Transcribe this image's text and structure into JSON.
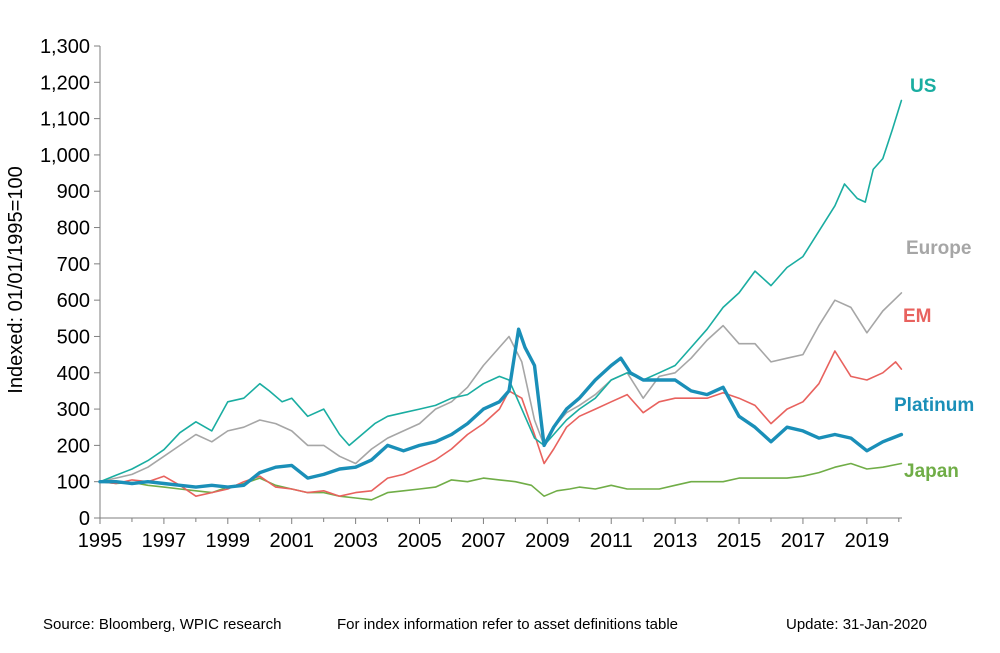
{
  "chart_data": {
    "type": "line",
    "ylabel": "Indexed: 01/01/1995=100",
    "xlabel": "",
    "ylim": [
      0,
      1300
    ],
    "xlim": [
      1995,
      2020.1
    ],
    "y_ticks": [
      0,
      100,
      200,
      300,
      400,
      500,
      600,
      700,
      800,
      900,
      1000,
      1100,
      1200,
      1300
    ],
    "y_tick_labels": [
      "0",
      "100",
      "200",
      "300",
      "400",
      "500",
      "600",
      "700",
      "800",
      "900",
      "1,000",
      "1,100",
      "1,200",
      "1,300"
    ],
    "x_ticks": [
      1995,
      1997,
      1999,
      2001,
      2003,
      2005,
      2007,
      2009,
      2011,
      2013,
      2015,
      2017,
      2019
    ],
    "grid": false,
    "legend": "inline labels at line ends",
    "series": [
      {
        "name": "US",
        "color": "#1aada1",
        "x": [
          1995,
          1995.5,
          1996,
          1996.5,
          1997,
          1997.5,
          1998,
          1998.5,
          1999,
          1999.5,
          2000,
          2000.3,
          2000.7,
          2001,
          2001.5,
          2002,
          2002.5,
          2002.8,
          2003.2,
          2003.6,
          2004,
          2004.5,
          2005,
          2005.5,
          2006,
          2006.5,
          2007,
          2007.5,
          2007.8,
          2008.2,
          2008.6,
          2008.9,
          2009.2,
          2009.6,
          2010,
          2010.5,
          2011,
          2011.5,
          2012,
          2012.5,
          2013,
          2013.5,
          2014,
          2014.5,
          2015,
          2015.5,
          2016,
          2016.5,
          2017,
          2017.5,
          2018,
          2018.3,
          2018.7,
          2018.95,
          2019.2,
          2019.5,
          2019.8,
          2020.08
        ],
        "values": [
          100,
          118,
          135,
          158,
          188,
          235,
          265,
          240,
          320,
          330,
          370,
          350,
          320,
          330,
          280,
          300,
          230,
          200,
          230,
          260,
          280,
          290,
          300,
          310,
          330,
          340,
          370,
          390,
          380,
          300,
          220,
          200,
          230,
          270,
          300,
          330,
          380,
          400,
          380,
          400,
          420,
          470,
          520,
          580,
          620,
          680,
          640,
          690,
          720,
          790,
          860,
          920,
          880,
          870,
          960,
          990,
          1070,
          1150
        ]
      },
      {
        "name": "Europe",
        "color": "#a6a6a6",
        "x": [
          1995,
          1995.5,
          1996,
          1996.5,
          1997,
          1997.5,
          1998,
          1998.5,
          1999,
          1999.5,
          2000,
          2000.5,
          2001,
          2001.5,
          2002,
          2002.5,
          2003,
          2003.5,
          2004,
          2004.5,
          2005,
          2005.5,
          2006,
          2006.5,
          2007,
          2007.5,
          2007.8,
          2008.2,
          2008.6,
          2008.9,
          2009.2,
          2009.6,
          2010,
          2010.5,
          2011,
          2011.5,
          2012,
          2012.5,
          2013,
          2013.5,
          2014,
          2014.5,
          2015,
          2015.5,
          2016,
          2016.5,
          2017,
          2017.5,
          2018,
          2018.5,
          2019,
          2019.5,
          2020.08
        ],
        "values": [
          100,
          110,
          120,
          140,
          170,
          200,
          230,
          210,
          240,
          250,
          270,
          260,
          240,
          200,
          200,
          170,
          150,
          190,
          220,
          240,
          260,
          300,
          320,
          360,
          420,
          470,
          500,
          430,
          270,
          200,
          250,
          290,
          310,
          340,
          380,
          400,
          330,
          390,
          400,
          440,
          490,
          530,
          480,
          480,
          430,
          440,
          450,
          530,
          600,
          580,
          510,
          570,
          620
        ]
      },
      {
        "name": "EM",
        "color": "#e8625e",
        "x": [
          1995,
          1995.5,
          1996,
          1996.5,
          1997,
          1997.5,
          1998,
          1998.5,
          1999,
          1999.5,
          2000,
          2000.5,
          2001,
          2001.5,
          2002,
          2002.5,
          2003,
          2003.5,
          2004,
          2004.5,
          2005,
          2005.5,
          2006,
          2006.5,
          2007,
          2007.5,
          2007.8,
          2008.2,
          2008.6,
          2008.9,
          2009.2,
          2009.6,
          2010,
          2010.5,
          2011,
          2011.5,
          2012,
          2012.5,
          2013,
          2013.5,
          2014,
          2014.5,
          2015,
          2015.5,
          2016,
          2016.5,
          2017,
          2017.5,
          2018,
          2018.5,
          2019,
          2019.5,
          2019.9,
          2020.08
        ],
        "values": [
          100,
          95,
          105,
          100,
          115,
          90,
          60,
          70,
          80,
          100,
          115,
          85,
          80,
          70,
          75,
          60,
          70,
          75,
          110,
          120,
          140,
          160,
          190,
          230,
          260,
          300,
          350,
          330,
          230,
          150,
          190,
          250,
          280,
          300,
          320,
          340,
          290,
          320,
          330,
          330,
          330,
          345,
          330,
          310,
          260,
          300,
          320,
          370,
          460,
          390,
          380,
          400,
          430,
          410
        ]
      },
      {
        "name": "Platinum",
        "color": "#1a8fb8",
        "x": [
          1995,
          1995.5,
          1996,
          1996.5,
          1997,
          1997.5,
          1998,
          1998.5,
          1999,
          1999.5,
          2000,
          2000.5,
          2001,
          2001.5,
          2002,
          2002.5,
          2003,
          2003.5,
          2004,
          2004.5,
          2005,
          2005.5,
          2006,
          2006.5,
          2007,
          2007.5,
          2007.8,
          2008.1,
          2008.3,
          2008.6,
          2008.9,
          2009.2,
          2009.6,
          2010,
          2010.5,
          2011,
          2011.3,
          2011.6,
          2012,
          2012.5,
          2013,
          2013.5,
          2014,
          2014.5,
          2015,
          2015.5,
          2016,
          2016.5,
          2017,
          2017.5,
          2018,
          2018.5,
          2019,
          2019.5,
          2020.08
        ],
        "values": [
          100,
          100,
          95,
          100,
          95,
          90,
          85,
          90,
          85,
          90,
          125,
          140,
          145,
          110,
          120,
          135,
          140,
          160,
          200,
          185,
          200,
          210,
          230,
          260,
          300,
          320,
          350,
          520,
          470,
          420,
          200,
          250,
          300,
          330,
          380,
          420,
          440,
          400,
          380,
          380,
          380,
          350,
          340,
          360,
          280,
          250,
          210,
          250,
          240,
          220,
          230,
          220,
          185,
          210,
          230
        ]
      },
      {
        "name": "Japan",
        "color": "#70ad47",
        "x": [
          1995,
          1995.5,
          1996,
          1996.5,
          1997,
          1997.5,
          1998,
          1998.5,
          1999,
          1999.5,
          2000,
          2000.5,
          2001,
          2001.5,
          2002,
          2002.5,
          2003,
          2003.5,
          2004,
          2004.5,
          2005,
          2005.5,
          2006,
          2006.5,
          2007,
          2007.5,
          2008,
          2008.5,
          2008.9,
          2009.3,
          2009.7,
          2010,
          2010.5,
          2011,
          2011.5,
          2012,
          2012.5,
          2013,
          2013.5,
          2014,
          2014.5,
          2015,
          2015.5,
          2016,
          2016.5,
          2017,
          2017.5,
          2018,
          2018.5,
          2019,
          2019.5,
          2020.08
        ],
        "values": [
          100,
          95,
          98,
          90,
          85,
          80,
          75,
          70,
          85,
          95,
          110,
          90,
          80,
          70,
          70,
          60,
          55,
          50,
          70,
          75,
          80,
          85,
          105,
          100,
          110,
          105,
          100,
          90,
          60,
          75,
          80,
          85,
          80,
          90,
          80,
          80,
          80,
          90,
          100,
          100,
          100,
          110,
          110,
          110,
          110,
          115,
          125,
          140,
          150,
          135,
          140,
          150
        ]
      }
    ],
    "source": "Source: Bloomberg, WPIC research",
    "info": "For index information refer to asset definitions table",
    "update": "Update: 31-Jan-2020"
  }
}
